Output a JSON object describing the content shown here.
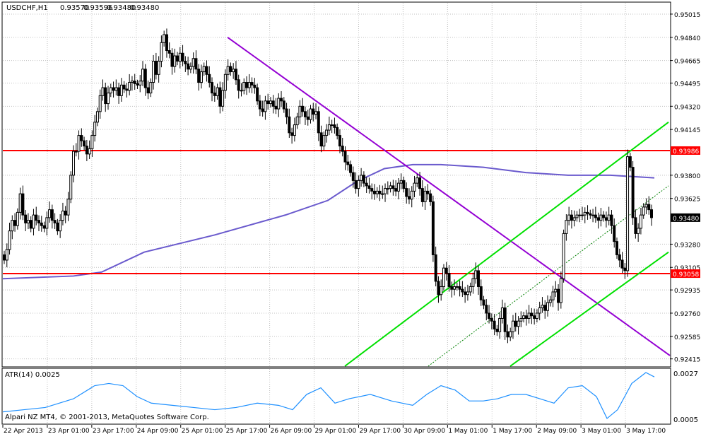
{
  "header": {
    "symbol": "USDCHF,H1",
    "open": "0.93570",
    "high": "0.93596",
    "low": "0.93480",
    "close": "0.93480"
  },
  "indicator": {
    "label": "ATR(14) 0.0025",
    "max_label": "0.0027",
    "min_label": "0.0005",
    "line_color": "#1e90ff"
  },
  "copyright": "Alpari NZ MT4, © 2001-2013, MetaQuotes Software Corp.",
  "colors": {
    "background": "#ffffff",
    "grid": "#c0c0c0",
    "candle": "#000000",
    "support_resistance": "#ff0000",
    "trend_channel": "#00e000",
    "downtrend": "#9400d3",
    "moving_average": "#6a5acd",
    "atr": "#1e90ff"
  },
  "chart_data": {
    "type": "candlestick",
    "title": "USDCHF,H1",
    "price_ticks": [
      "0.95015",
      "0.94840",
      "0.94665",
      "0.94495",
      "0.94320",
      "0.94145",
      "0.93986",
      "0.93800",
      "0.93625",
      "0.93480",
      "0.93280",
      "0.93105",
      "0.93058",
      "0.92935",
      "0.92760",
      "0.92585",
      "0.92415"
    ],
    "time_ticks": [
      "22 Apr 2013",
      "23 Apr 01:00",
      "23 Apr 17:00",
      "24 Apr 09:00",
      "25 Apr 01:00",
      "25 Apr 17:00",
      "26 Apr 09:00",
      "29 Apr 01:00",
      "29 Apr 17:00",
      "30 Apr 09:00",
      "1 May 01:00",
      "1 May 17:00",
      "2 May 09:00",
      "3 May 01:00",
      "3 May 17:00"
    ],
    "current_price": 0.9348,
    "horizontal_levels": [
      {
        "price": 0.93986,
        "label": "0.93986",
        "color": "#ff0000"
      },
      {
        "price": 0.93058,
        "label": "0.93058",
        "color": "#ff0000"
      }
    ],
    "ylim": [
      0.9236,
      0.951
    ],
    "closes": [
      0.9316,
      0.9324,
      0.9338,
      0.9346,
      0.9342,
      0.9352,
      0.9366,
      0.935,
      0.9344,
      0.9346,
      0.934,
      0.935,
      0.9346,
      0.9344,
      0.9342,
      0.934,
      0.9348,
      0.9354,
      0.9346,
      0.9344,
      0.9338,
      0.9346,
      0.9353,
      0.935,
      0.9362,
      0.938,
      0.9398,
      0.9398,
      0.941,
      0.9406,
      0.9402,
      0.9396,
      0.94,
      0.941,
      0.942,
      0.9428,
      0.944,
      0.9446,
      0.9434,
      0.9442,
      0.9446,
      0.9444,
      0.9446,
      0.944,
      0.9448,
      0.9445,
      0.9444,
      0.945,
      0.9451,
      0.9449,
      0.9448,
      0.9451,
      0.946,
      0.9446,
      0.9442,
      0.945,
      0.9466,
      0.9456,
      0.9466,
      0.948,
      0.9486,
      0.9474,
      0.9472,
      0.9462,
      0.947,
      0.9466,
      0.9472,
      0.9466,
      0.9464,
      0.946,
      0.9462,
      0.9468,
      0.946,
      0.945,
      0.9458,
      0.9462,
      0.9456,
      0.945,
      0.9442,
      0.944,
      0.9446,
      0.9432,
      0.9444,
      0.9456,
      0.9462,
      0.9458,
      0.946,
      0.9452,
      0.9444,
      0.9444,
      0.945,
      0.9446,
      0.945,
      0.9448,
      0.9446,
      0.9436,
      0.943,
      0.9428,
      0.9436,
      0.9434,
      0.9436,
      0.9432,
      0.943,
      0.9438,
      0.9436,
      0.943,
      0.9424,
      0.9412,
      0.941,
      0.9418,
      0.9424,
      0.9432,
      0.9428,
      0.9424,
      0.9422,
      0.943,
      0.9426,
      0.9428,
      0.9412,
      0.9402,
      0.941,
      0.9414,
      0.9418,
      0.9418,
      0.9416,
      0.941,
      0.9402,
      0.9398,
      0.939,
      0.9388,
      0.9382,
      0.9376,
      0.937,
      0.9376,
      0.938,
      0.9374,
      0.9372,
      0.937,
      0.9368,
      0.9366,
      0.9368,
      0.9366,
      0.9366,
      0.937,
      0.937,
      0.9372,
      0.937,
      0.9368,
      0.9374,
      0.9376,
      0.937,
      0.9364,
      0.9362,
      0.9368,
      0.9374,
      0.9378,
      0.937,
      0.936,
      0.9368,
      0.9366,
      0.936,
      0.932,
      0.93,
      0.929,
      0.9296,
      0.931,
      0.9306,
      0.9296,
      0.9294,
      0.9296,
      0.9296,
      0.9294,
      0.9292,
      0.929,
      0.9292,
      0.9296,
      0.9302,
      0.9308,
      0.9296,
      0.9286,
      0.9282,
      0.9276,
      0.9272,
      0.927,
      0.9264,
      0.9262,
      0.9272,
      0.928,
      0.9262,
      0.9258,
      0.9262,
      0.927,
      0.9266,
      0.927,
      0.9272,
      0.9274,
      0.9272,
      0.9276,
      0.9274,
      0.9272,
      0.9276,
      0.928,
      0.9282,
      0.9278,
      0.9284,
      0.9286,
      0.9292,
      0.9294,
      0.9284,
      0.9302,
      0.9336,
      0.9346,
      0.935,
      0.9346,
      0.9348,
      0.935,
      0.935,
      0.935,
      0.9352,
      0.9351,
      0.935,
      0.935,
      0.9348,
      0.9346,
      0.935,
      0.9348,
      0.9346,
      0.935,
      0.9342,
      0.933,
      0.932,
      0.9316,
      0.931,
      0.9308,
      0.9394,
      0.9386,
      0.9348,
      0.9336,
      0.934,
      0.935,
      0.9356,
      0.9358,
      0.9354,
      0.9348
    ],
    "moving_average": [
      [
        0,
        0.9302
      ],
      [
        100,
        0.9304
      ],
      [
        140,
        0.9307
      ],
      [
        200,
        0.9322
      ],
      [
        300,
        0.9335
      ],
      [
        400,
        0.935
      ],
      [
        460,
        0.9361
      ],
      [
        500,
        0.9375
      ],
      [
        540,
        0.9385
      ],
      [
        580,
        0.9388
      ],
      [
        620,
        0.9388
      ],
      [
        680,
        0.9386
      ],
      [
        740,
        0.9382
      ],
      [
        800,
        0.938
      ],
      [
        860,
        0.938
      ],
      [
        922,
        0.9378
      ]
    ],
    "trend_lines": [
      {
        "name": "downtrend",
        "color": "#9400d3",
        "points": [
          [
            322,
            0.9484
          ],
          [
            948,
            0.9244
          ]
        ]
      },
      {
        "name": "channel-upper",
        "color": "#00e000",
        "points": [
          [
            488,
            0.9236
          ],
          [
            946,
            0.942
          ]
        ]
      },
      {
        "name": "channel-lower",
        "color": "#00e000",
        "points": [
          [
            722,
            0.9236
          ],
          [
            946,
            0.9322
          ]
        ]
      },
      {
        "name": "channel-mid",
        "color": "#008000",
        "points": [
          [
            606,
            0.9236
          ],
          [
            946,
            0.9372
          ]
        ],
        "dashed": true
      }
    ],
    "atr_series": [
      [
        0,
        0.0009
      ],
      [
        30,
        0.001
      ],
      [
        60,
        0.0011
      ],
      [
        100,
        0.0015
      ],
      [
        130,
        0.0021
      ],
      [
        150,
        0.0022
      ],
      [
        170,
        0.0021
      ],
      [
        190,
        0.0016
      ],
      [
        210,
        0.0013
      ],
      [
        240,
        0.0012
      ],
      [
        270,
        0.0011
      ],
      [
        300,
        0.001
      ],
      [
        330,
        0.0011
      ],
      [
        360,
        0.0013
      ],
      [
        390,
        0.0012
      ],
      [
        410,
        0.001
      ],
      [
        430,
        0.0017
      ],
      [
        450,
        0.002
      ],
      [
        470,
        0.0013
      ],
      [
        490,
        0.0015
      ],
      [
        520,
        0.0017
      ],
      [
        550,
        0.0014
      ],
      [
        580,
        0.0012
      ],
      [
        600,
        0.0017
      ],
      [
        620,
        0.0021
      ],
      [
        640,
        0.0019
      ],
      [
        660,
        0.0014
      ],
      [
        680,
        0.0014
      ],
      [
        700,
        0.0015
      ],
      [
        720,
        0.0017
      ],
      [
        740,
        0.0017
      ],
      [
        760,
        0.0015
      ],
      [
        780,
        0.0013
      ],
      [
        800,
        0.002
      ],
      [
        820,
        0.0021
      ],
      [
        840,
        0.0016
      ],
      [
        855,
        0.0006
      ],
      [
        870,
        0.001
      ],
      [
        890,
        0.0022
      ],
      [
        910,
        0.0027
      ],
      [
        922,
        0.0025
      ]
    ]
  }
}
